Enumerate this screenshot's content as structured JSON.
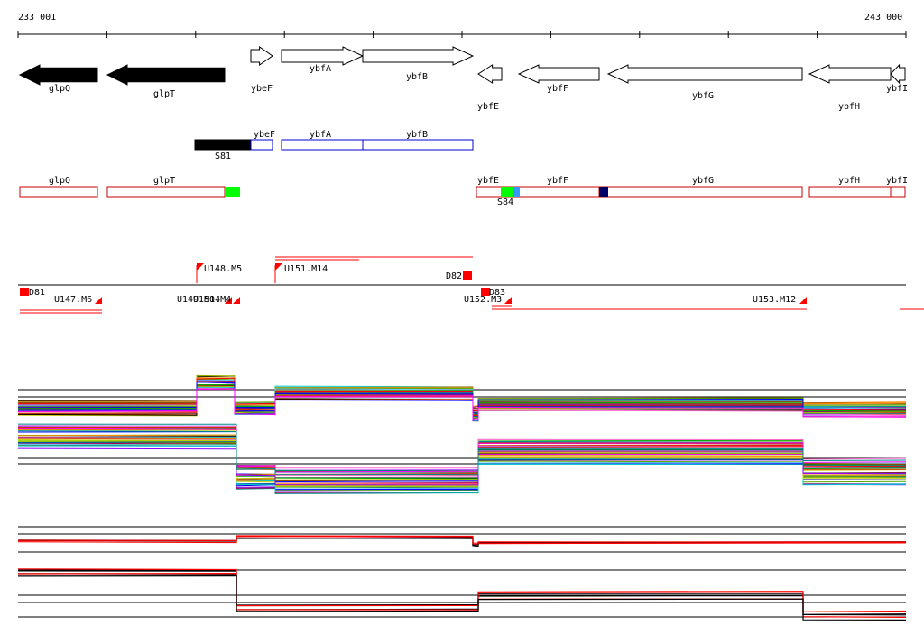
{
  "ruler": {
    "start_label": "233 001",
    "end_label": "243 000"
  },
  "genes_top": [
    {
      "id": "glpQ",
      "label": "glpQ",
      "strand": "-",
      "filled": true
    },
    {
      "id": "glpT",
      "label": "glpT",
      "strand": "-",
      "filled": true
    },
    {
      "id": "ybeF",
      "label": "ybeF",
      "strand": "+",
      "filled": false
    },
    {
      "id": "ybfA",
      "label": "ybfA",
      "strand": "+",
      "filled": false
    },
    {
      "id": "ybfB",
      "label": "ybfB",
      "strand": "+",
      "filled": false
    },
    {
      "id": "ybfE",
      "label": "ybfE",
      "strand": "-",
      "filled": false
    },
    {
      "id": "ybfF",
      "label": "ybfF",
      "strand": "-",
      "filled": false
    },
    {
      "id": "ybfG",
      "label": "ybfG",
      "strand": "-",
      "filled": false
    },
    {
      "id": "ybfH",
      "label": "ybfH",
      "strand": "-",
      "filled": false
    },
    {
      "id": "ybfI",
      "label": "ybfI",
      "strand": "-",
      "filled": false
    }
  ],
  "operon_plus": {
    "labels": [
      "ybeF",
      "ybfA",
      "ybfB"
    ],
    "segment_label": "S81",
    "color": "#0000cc"
  },
  "operon_minus": {
    "labels": [
      "glpQ",
      "glpT",
      "ybfE",
      "ybfF",
      "ybfG",
      "ybfH",
      "ybfI"
    ],
    "segment_label": "S84",
    "color": "#cc0000"
  },
  "transcripts": {
    "labels": [
      "U148.M5",
      "U151.M14",
      "D82",
      "D81",
      "U147.M6",
      "U149.M14",
      "U150.M4",
      "U152.M3",
      "D83",
      "U153.M12"
    ],
    "color": "#ff0000"
  },
  "colors": {
    "accent_red": "#ff0000",
    "filled_gene": "#000000",
    "green_marker": "#00ff00",
    "navy_marker": "#000066",
    "blue_marker": "#3399ff"
  }
}
